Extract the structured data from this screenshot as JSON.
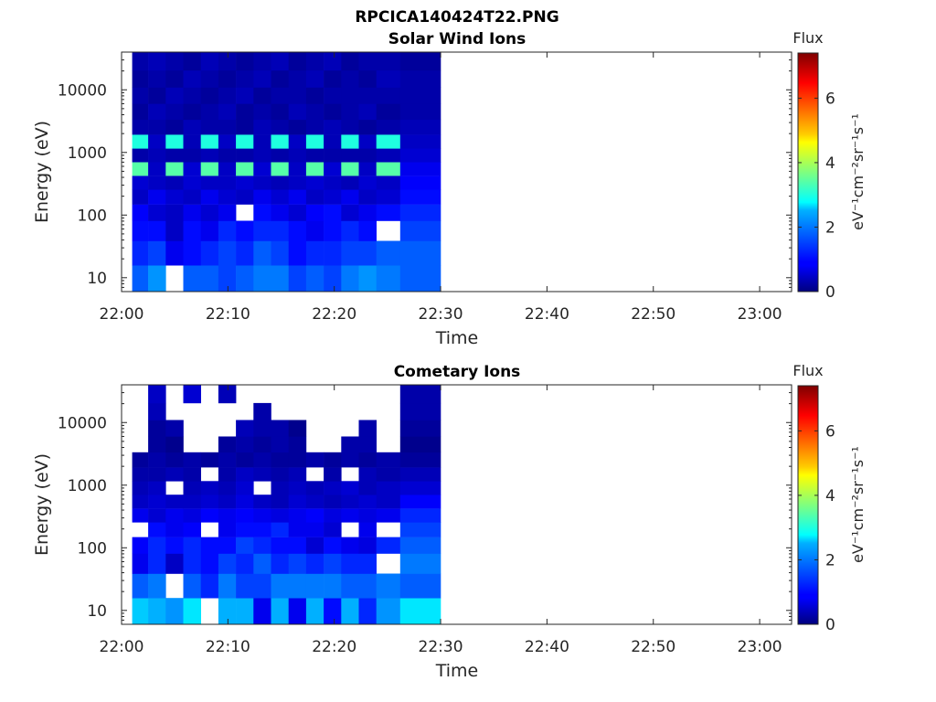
{
  "figure": {
    "title": "RPCICA140424T22.PNG"
  },
  "chart_data": [
    {
      "type": "heatmap",
      "title": "Solar Wind Ions",
      "xlabel": "Time",
      "ylabel": "Energy (eV)",
      "x_ticks": [
        "22:00",
        "22:10",
        "22:20",
        "22:30",
        "22:40",
        "22:50",
        "23:00"
      ],
      "xlim": [
        "22:00",
        "23:03"
      ],
      "y_scale": "log",
      "y_ticks": [
        "10",
        "100",
        "1000",
        "10000"
      ],
      "ylim": [
        6,
        40000
      ],
      "data_extent_x": [
        "22:01",
        "22:30"
      ],
      "colorbar": {
        "label": "Flux",
        "unit": "eV⁻¹cm⁻²sr⁻¹s⁻¹",
        "ticks": [
          "0",
          "2",
          "4",
          "6"
        ],
        "range": [
          0,
          7.4
        ],
        "colormap": "jet"
      },
      "time_bins": [
        "22:01.7",
        "22:03.3",
        "22:05.0",
        "22:06.6",
        "22:08.3",
        "22:09.9",
        "22:11.6",
        "22:13.2",
        "22:14.9",
        "22:16.5",
        "22:18.2",
        "22:19.8",
        "22:21.5",
        "22:23.1",
        "22:24.8",
        "22:27.6"
      ],
      "energy_bins": [
        10,
        25,
        60,
        110,
        200,
        330,
        550,
        900,
        1500,
        2500,
        4500,
        8000,
        15000,
        28000
      ],
      "flux_matrix": [
        [
          1.6,
          2.0,
          9.0,
          1.6,
          1.6,
          1.4,
          1.6,
          1.8,
          1.8,
          1.4,
          1.6,
          1.4,
          1.8,
          2.0,
          1.8,
          1.6
        ],
        [
          1.2,
          1.4,
          0.8,
          1.0,
          1.2,
          1.4,
          1.2,
          1.6,
          1.4,
          1.0,
          1.2,
          1.2,
          1.4,
          1.4,
          1.6,
          1.6
        ],
        [
          1.0,
          1.0,
          0.5,
          1.0,
          0.8,
          1.2,
          1.0,
          1.2,
          1.2,
          1.0,
          0.8,
          1.0,
          1.2,
          1.0,
          9.0,
          1.4
        ],
        [
          0.9,
          0.6,
          0.5,
          0.8,
          0.6,
          0.8,
          9.0,
          1.0,
          0.8,
          0.6,
          0.9,
          1.0,
          0.6,
          0.8,
          1.0,
          1.2
        ],
        [
          0.5,
          0.8,
          0.6,
          0.5,
          0.8,
          0.6,
          0.5,
          0.8,
          0.6,
          0.8,
          0.5,
          0.6,
          0.8,
          0.5,
          0.6,
          1.0
        ],
        [
          0.6,
          0.5,
          0.4,
          0.6,
          0.5,
          0.5,
          0.6,
          0.5,
          0.4,
          0.5,
          0.6,
          0.5,
          0.4,
          0.6,
          0.5,
          0.9
        ],
        [
          3.4,
          0.5,
          3.4,
          0.6,
          3.4,
          0.5,
          3.4,
          0.6,
          3.4,
          0.5,
          3.4,
          0.6,
          3.4,
          0.5,
          3.4,
          0.8
        ],
        [
          0.3,
          0.4,
          0.3,
          0.3,
          0.4,
          0.3,
          0.3,
          0.4,
          0.3,
          0.4,
          0.3,
          0.3,
          0.3,
          0.3,
          0.4,
          0.6
        ],
        [
          3.0,
          0.5,
          3.0,
          0.4,
          3.0,
          0.5,
          3.0,
          0.4,
          3.0,
          0.5,
          3.0,
          0.4,
          3.0,
          0.5,
          3.0,
          0.5
        ],
        [
          0.3,
          0.3,
          0.2,
          0.4,
          0.3,
          0.3,
          0.2,
          0.4,
          0.3,
          0.2,
          0.3,
          0.4,
          0.3,
          0.2,
          0.3,
          0.4
        ],
        [
          0.2,
          0.4,
          0.3,
          0.2,
          0.3,
          0.4,
          0.2,
          0.3,
          0.2,
          0.4,
          0.3,
          0.2,
          0.3,
          0.4,
          0.2,
          0.3
        ],
        [
          0.3,
          0.2,
          0.4,
          0.3,
          0.2,
          0.3,
          0.4,
          0.2,
          0.3,
          0.3,
          0.2,
          0.3,
          0.3,
          0.3,
          0.3,
          0.3
        ],
        [
          0.2,
          0.3,
          0.2,
          0.4,
          0.3,
          0.2,
          0.3,
          0.4,
          0.2,
          0.3,
          0.4,
          0.2,
          0.3,
          0.2,
          0.4,
          0.3
        ],
        [
          0.3,
          0.4,
          0.3,
          0.2,
          0.4,
          0.3,
          0.2,
          0.3,
          0.4,
          0.2,
          0.3,
          0.4,
          0.2,
          0.3,
          0.3,
          0.2
        ]
      ]
    },
    {
      "type": "heatmap",
      "title": "Cometary Ions",
      "xlabel": "Time",
      "ylabel": "Energy (eV)",
      "x_ticks": [
        "22:00",
        "22:10",
        "22:20",
        "22:30",
        "22:40",
        "22:50",
        "23:00"
      ],
      "xlim": [
        "22:00",
        "23:03"
      ],
      "y_scale": "log",
      "y_ticks": [
        "10",
        "100",
        "1000",
        "10000"
      ],
      "ylim": [
        6,
        40000
      ],
      "data_extent_x": [
        "22:01",
        "22:30"
      ],
      "colorbar": {
        "label": "Flux",
        "unit": "eV⁻¹cm⁻²sr⁻¹s⁻¹",
        "ticks": [
          "0",
          "2",
          "4",
          "6"
        ],
        "range": [
          0,
          7.4
        ],
        "colormap": "jet"
      },
      "time_bins": [
        "22:01.7",
        "22:03.3",
        "22:05.0",
        "22:06.6",
        "22:08.3",
        "22:09.9",
        "22:11.6",
        "22:13.2",
        "22:14.9",
        "22:16.5",
        "22:18.2",
        "22:19.8",
        "22:21.5",
        "22:23.1",
        "22:24.8",
        "22:27.6"
      ],
      "energy_bins": [
        10,
        25,
        60,
        110,
        200,
        330,
        550,
        900,
        1500,
        2500,
        4500,
        8000,
        15000,
        28000
      ],
      "flux_matrix": [
        [
          2.4,
          2.2,
          2.0,
          2.6,
          9.0,
          2.2,
          2.2,
          0.8,
          2.2,
          0.8,
          2.2,
          1.0,
          2.2,
          1.2,
          2.0,
          2.6
        ],
        [
          1.6,
          1.8,
          9.0,
          1.6,
          1.2,
          1.8,
          1.4,
          1.4,
          1.8,
          1.8,
          1.8,
          1.8,
          1.6,
          1.6,
          1.8,
          1.6
        ],
        [
          0.8,
          1.2,
          0.5,
          1.2,
          1.0,
          1.4,
          1.2,
          1.6,
          1.2,
          1.4,
          1.2,
          1.4,
          1.2,
          1.2,
          9.0,
          1.8
        ],
        [
          0.9,
          1.2,
          1.0,
          1.2,
          1.0,
          1.0,
          1.4,
          1.2,
          1.0,
          1.0,
          0.6,
          1.0,
          0.8,
          0.7,
          1.2,
          1.6
        ],
        [
          9.0,
          1.0,
          0.8,
          0.9,
          9.0,
          0.8,
          1.0,
          1.0,
          1.2,
          0.8,
          0.8,
          0.6,
          9.0,
          0.8,
          9.0,
          1.4
        ],
        [
          0.8,
          0.6,
          0.8,
          0.7,
          0.9,
          0.8,
          0.9,
          0.8,
          0.7,
          0.8,
          0.9,
          0.7,
          0.8,
          0.7,
          0.8,
          1.2
        ],
        [
          0.5,
          0.6,
          0.5,
          0.5,
          0.6,
          0.5,
          0.7,
          0.5,
          0.4,
          0.6,
          0.5,
          0.4,
          0.5,
          0.6,
          0.5,
          0.9
        ],
        [
          0.4,
          0.5,
          9.0,
          0.4,
          0.5,
          0.4,
          0.6,
          9.0,
          0.4,
          0.5,
          0.4,
          0.5,
          0.6,
          0.4,
          0.5,
          0.6
        ],
        [
          0.3,
          0.3,
          0.4,
          0.3,
          9.0,
          0.3,
          0.5,
          0.4,
          0.3,
          0.4,
          9.0,
          0.3,
          9.0,
          0.4,
          0.3,
          0.4
        ],
        [
          0.2,
          0.3,
          0.2,
          0.3,
          0.2,
          0.3,
          0.2,
          0.3,
          0.2,
          0.2,
          0.3,
          0.2,
          0.3,
          0.2,
          0.3,
          0.2
        ],
        [
          9.0,
          0.2,
          0.1,
          9.0,
          9.0,
          0.2,
          0.3,
          0.2,
          0.3,
          0.2,
          9.0,
          9.0,
          0.3,
          0.3,
          9.0,
          0.1
        ],
        [
          9.0,
          0.2,
          0.3,
          9.0,
          9.0,
          9.0,
          0.4,
          0.3,
          0.3,
          0.1,
          9.0,
          9.0,
          9.0,
          0.3,
          9.0,
          0.2
        ],
        [
          9.0,
          0.4,
          9.0,
          9.0,
          9.0,
          9.0,
          9.0,
          0.3,
          9.0,
          9.0,
          9.0,
          9.0,
          9.0,
          9.0,
          9.0,
          0.3
        ],
        [
          9.0,
          0.5,
          9.0,
          0.6,
          9.0,
          0.4,
          9.0,
          9.0,
          9.0,
          9.0,
          9.0,
          9.0,
          9.0,
          9.0,
          9.0,
          0.3
        ]
      ]
    }
  ]
}
